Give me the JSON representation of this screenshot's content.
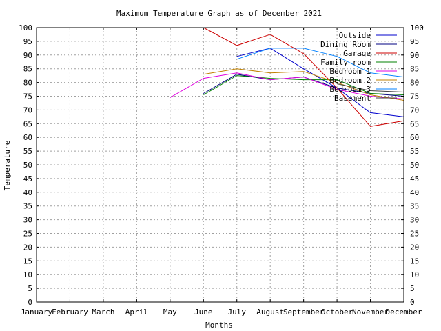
{
  "chart_data": {
    "type": "line",
    "title": "Maximum Temperature Graph as of December 2021",
    "xlabel": "Months",
    "ylabel": "Temperature",
    "categories": [
      "January",
      "February",
      "March",
      "April",
      "May",
      "June",
      "July",
      "August",
      "September",
      "October",
      "November",
      "December"
    ],
    "ylim": [
      0,
      100
    ],
    "ytick_step": 5,
    "grid": true,
    "legend_position": "top-right",
    "series": [
      {
        "name": "Outside",
        "color": "#0000cc",
        "values": [
          null,
          null,
          null,
          null,
          null,
          null,
          89.5,
          92.5,
          85,
          78,
          69,
          67.5
        ]
      },
      {
        "name": "Dining Room",
        "color": "#000080",
        "values": [
          null,
          null,
          null,
          null,
          null,
          76,
          83,
          81,
          82,
          78,
          76,
          75
        ]
      },
      {
        "name": "Garage",
        "color": "#cc0000",
        "values": [
          null,
          null,
          null,
          null,
          null,
          100,
          93.5,
          97.5,
          90.5,
          78,
          64,
          66
        ]
      },
      {
        "name": "Family room",
        "color": "#008000",
        "values": [
          null,
          null,
          null,
          null,
          null,
          75.5,
          82.5,
          81.5,
          81,
          81,
          76,
          75.5
        ]
      },
      {
        "name": "Bedroom 1",
        "color": "#e000e0",
        "values": [
          null,
          null,
          null,
          null,
          74.5,
          81.5,
          83.5,
          81,
          82,
          77.5,
          75,
          74
        ]
      },
      {
        "name": "Bedroom 2",
        "color": "#c08000",
        "values": [
          null,
          null,
          null,
          null,
          null,
          83,
          85,
          83.5,
          84,
          80,
          75.5,
          73.5
        ]
      },
      {
        "name": "Bedroom 3",
        "color": "#0080ff",
        "values": [
          null,
          null,
          null,
          null,
          null,
          null,
          88.5,
          92.5,
          92.5,
          89.5,
          83.5,
          82
        ]
      },
      {
        "name": "Basement",
        "color": "#404040",
        "values": [
          null,
          null,
          null,
          null,
          null,
          null,
          null,
          null,
          null,
          79.5,
          77,
          76.5
        ]
      }
    ]
  }
}
